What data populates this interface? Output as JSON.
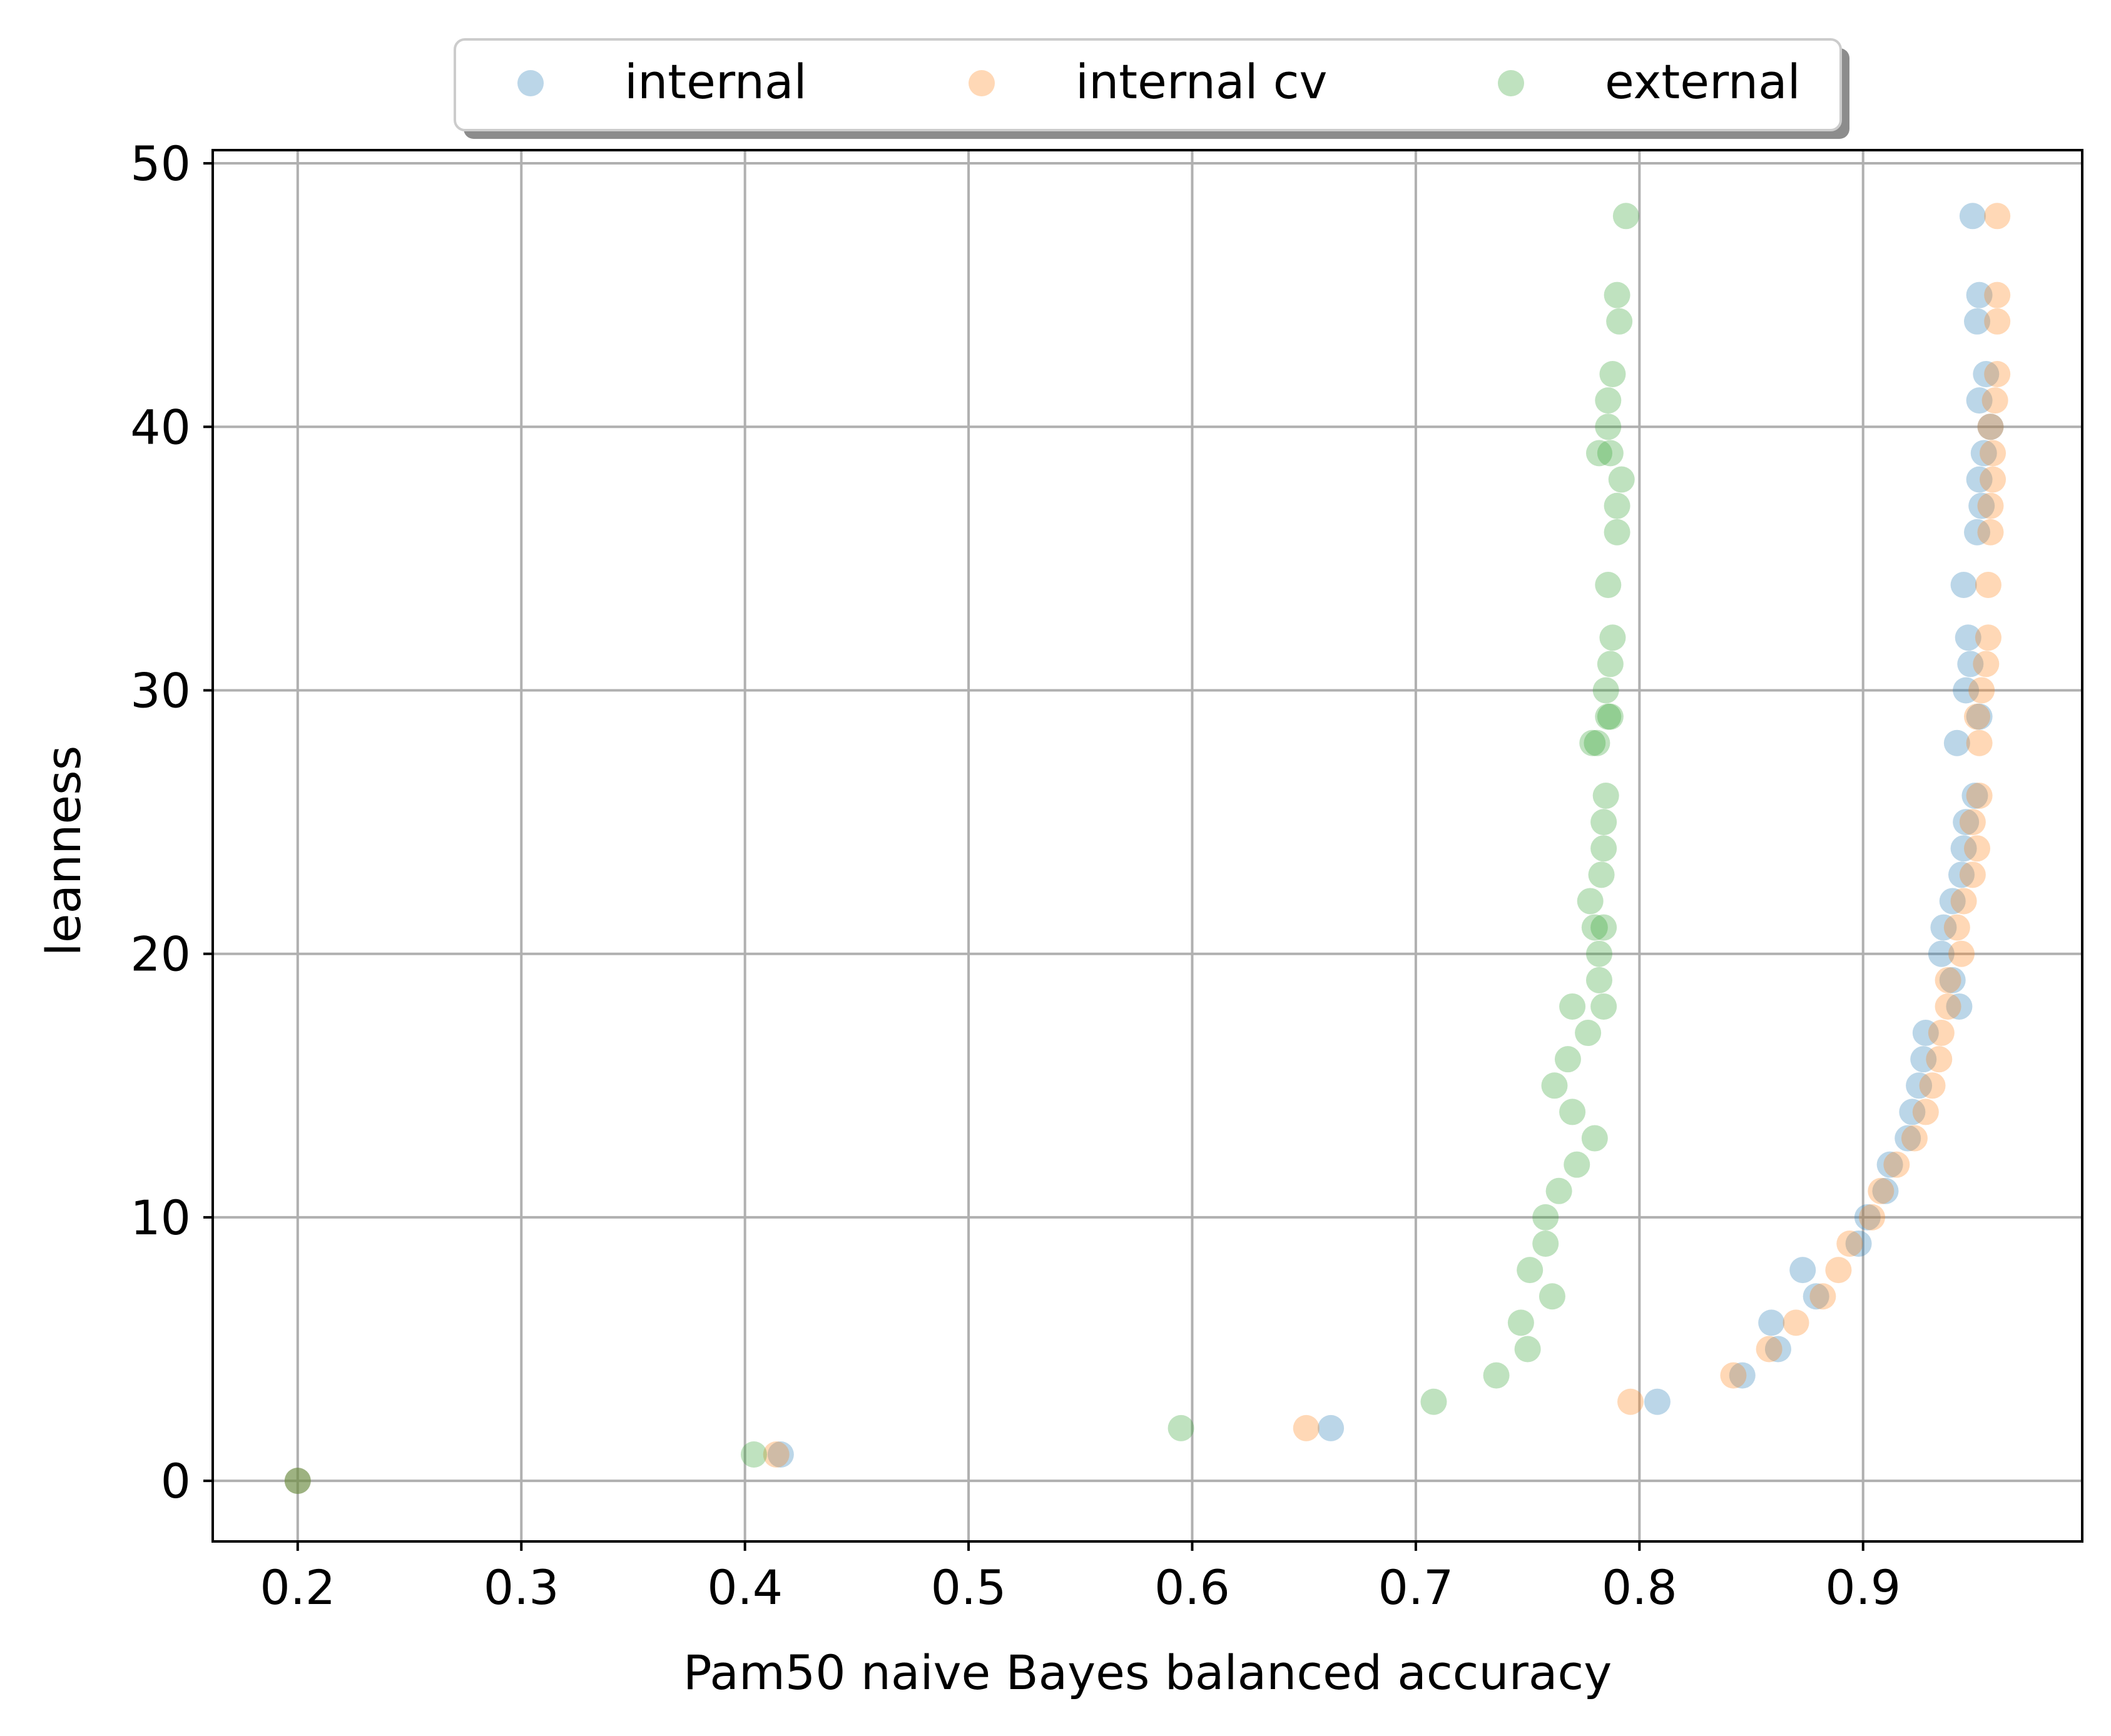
{
  "chart_data": {
    "type": "scatter",
    "title": "",
    "xlabel": "Pam50 naive Bayes balanced accuracy",
    "ylabel": "leanness",
    "xlim": [
      0.162,
      0.998
    ],
    "ylim": [
      -2.3,
      50.5
    ],
    "xticks": [
      0.2,
      0.3,
      0.4,
      0.5,
      0.6,
      0.7,
      0.8,
      0.9
    ],
    "xtick_labels": [
      "0.2",
      "0.3",
      "0.4",
      "0.5",
      "0.6",
      "0.7",
      "0.8",
      "0.9"
    ],
    "yticks": [
      0,
      10,
      20,
      30,
      40,
      50
    ],
    "ytick_labels": [
      "0",
      "10",
      "20",
      "30",
      "40",
      "50"
    ],
    "grid": true,
    "legend_position": "top-center, above plot, 3 columns",
    "series": [
      {
        "name": "internal",
        "color": "#1f77b4",
        "points": [
          [
            0.2,
            0
          ],
          [
            0.416,
            1
          ],
          [
            0.662,
            2
          ],
          [
            0.808,
            3
          ],
          [
            0.846,
            4
          ],
          [
            0.862,
            5
          ],
          [
            0.859,
            6
          ],
          [
            0.879,
            7
          ],
          [
            0.873,
            8
          ],
          [
            0.898,
            9
          ],
          [
            0.902,
            10
          ],
          [
            0.91,
            11
          ],
          [
            0.912,
            12
          ],
          [
            0.92,
            13
          ],
          [
            0.922,
            14
          ],
          [
            0.925,
            15
          ],
          [
            0.927,
            16
          ],
          [
            0.928,
            17
          ],
          [
            0.943,
            18
          ],
          [
            0.94,
            19
          ],
          [
            0.935,
            20
          ],
          [
            0.936,
            21
          ],
          [
            0.94,
            22
          ],
          [
            0.944,
            23
          ],
          [
            0.945,
            24
          ],
          [
            0.946,
            25
          ],
          [
            0.95,
            26
          ],
          [
            0.942,
            28
          ],
          [
            0.952,
            29
          ],
          [
            0.946,
            30
          ],
          [
            0.948,
            31
          ],
          [
            0.947,
            32
          ],
          [
            0.945,
            34
          ],
          [
            0.951,
            36
          ],
          [
            0.953,
            37
          ],
          [
            0.952,
            38
          ],
          [
            0.954,
            39
          ],
          [
            0.957,
            40
          ],
          [
            0.952,
            41
          ],
          [
            0.955,
            42
          ],
          [
            0.951,
            44
          ],
          [
            0.952,
            45
          ],
          [
            0.949,
            48
          ]
        ]
      },
      {
        "name": "internal cv",
        "color": "#ff7f0e",
        "points": [
          [
            0.2,
            0
          ],
          [
            0.414,
            1
          ],
          [
            0.651,
            2
          ],
          [
            0.796,
            3
          ],
          [
            0.842,
            4
          ],
          [
            0.858,
            5
          ],
          [
            0.87,
            6
          ],
          [
            0.882,
            7
          ],
          [
            0.889,
            8
          ],
          [
            0.894,
            9
          ],
          [
            0.904,
            10
          ],
          [
            0.908,
            11
          ],
          [
            0.915,
            12
          ],
          [
            0.923,
            13
          ],
          [
            0.928,
            14
          ],
          [
            0.931,
            15
          ],
          [
            0.934,
            16
          ],
          [
            0.935,
            17
          ],
          [
            0.938,
            18
          ],
          [
            0.938,
            19
          ],
          [
            0.944,
            20
          ],
          [
            0.942,
            21
          ],
          [
            0.945,
            22
          ],
          [
            0.949,
            23
          ],
          [
            0.951,
            24
          ],
          [
            0.949,
            25
          ],
          [
            0.952,
            26
          ],
          [
            0.952,
            28
          ],
          [
            0.951,
            29
          ],
          [
            0.953,
            30
          ],
          [
            0.955,
            31
          ],
          [
            0.956,
            32
          ],
          [
            0.956,
            34
          ],
          [
            0.957,
            36
          ],
          [
            0.957,
            37
          ],
          [
            0.958,
            38
          ],
          [
            0.958,
            39
          ],
          [
            0.957,
            40
          ],
          [
            0.959,
            41
          ],
          [
            0.96,
            42
          ],
          [
            0.96,
            44
          ],
          [
            0.96,
            45
          ],
          [
            0.96,
            48
          ]
        ]
      },
      {
        "name": "external",
        "color": "#2ca02c",
        "points": [
          [
            0.2,
            0
          ],
          [
            0.404,
            1
          ],
          [
            0.595,
            2
          ],
          [
            0.708,
            3
          ],
          [
            0.736,
            4
          ],
          [
            0.75,
            5
          ],
          [
            0.747,
            6
          ],
          [
            0.761,
            7
          ],
          [
            0.751,
            8
          ],
          [
            0.758,
            9
          ],
          [
            0.758,
            10
          ],
          [
            0.764,
            11
          ],
          [
            0.772,
            12
          ],
          [
            0.78,
            13
          ],
          [
            0.77,
            14
          ],
          [
            0.762,
            15
          ],
          [
            0.768,
            16
          ],
          [
            0.777,
            17
          ],
          [
            0.77,
            18
          ],
          [
            0.784,
            18
          ],
          [
            0.782,
            19
          ],
          [
            0.782,
            20
          ],
          [
            0.78,
            21
          ],
          [
            0.784,
            21
          ],
          [
            0.778,
            22
          ],
          [
            0.783,
            23
          ],
          [
            0.784,
            24
          ],
          [
            0.784,
            25
          ],
          [
            0.785,
            26
          ],
          [
            0.779,
            28
          ],
          [
            0.781,
            28
          ],
          [
            0.786,
            29
          ],
          [
            0.787,
            29
          ],
          [
            0.785,
            30
          ],
          [
            0.787,
            31
          ],
          [
            0.788,
            32
          ],
          [
            0.786,
            34
          ],
          [
            0.79,
            36
          ],
          [
            0.79,
            37
          ],
          [
            0.792,
            38
          ],
          [
            0.782,
            39
          ],
          [
            0.787,
            39
          ],
          [
            0.786,
            40
          ],
          [
            0.786,
            41
          ],
          [
            0.788,
            42
          ],
          [
            0.791,
            44
          ],
          [
            0.79,
            45
          ],
          [
            0.794,
            48
          ]
        ]
      }
    ]
  }
}
